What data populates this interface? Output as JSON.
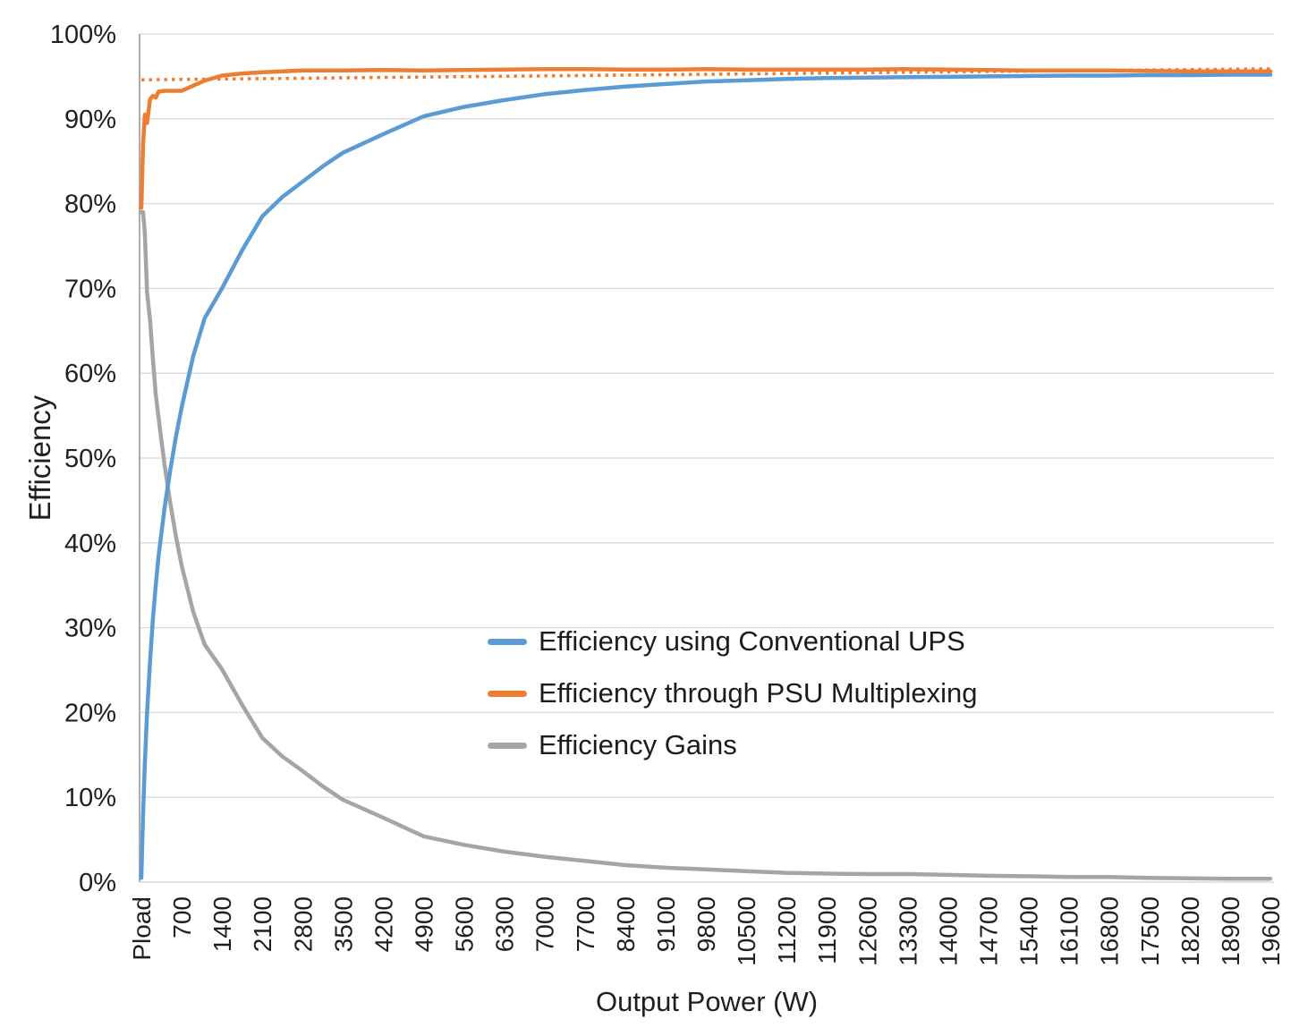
{
  "chart_data": {
    "type": "line",
    "title": "",
    "xlabel": "Output Power (W)",
    "ylabel": "Efficiency",
    "grid": "horizontal",
    "legend_position": "inside-center",
    "ylim": [
      0,
      100
    ],
    "xlim_watts": [
      0,
      19800
    ],
    "y_ticks": [
      {
        "label": "100%",
        "value": 100
      },
      {
        "label": "90%",
        "value": 90
      },
      {
        "label": "80%",
        "value": 80
      },
      {
        "label": "70%",
        "value": 70
      },
      {
        "label": "60%",
        "value": 60
      },
      {
        "label": "50%",
        "value": 50
      },
      {
        "label": "40%",
        "value": 40
      },
      {
        "label": "30%",
        "value": 30
      },
      {
        "label": "20%",
        "value": 20
      },
      {
        "label": "10%",
        "value": 10
      },
      {
        "label": "0%",
        "value": 0
      }
    ],
    "x_tick_labels": [
      "Pload",
      "700",
      "1400",
      "2100",
      "2800",
      "3500",
      "4200",
      "4900",
      "5600",
      "6300",
      "7000",
      "7700",
      "8400",
      "9100",
      "9800",
      "10500",
      "11200",
      "11900",
      "12600",
      "13300",
      "14000",
      "14700",
      "15400",
      "16100",
      "16800",
      "17500",
      "18200",
      "18900",
      "19600"
    ],
    "x_tick_step_watts": 700,
    "colors": {
      "gridline": "#D9D9D9",
      "axis_line": "#ADADAD",
      "text": "#1F1F1F"
    },
    "series": [
      {
        "name": "Efficiency using Conventional UPS",
        "color": "#5B9BD5",
        "style": "solid",
        "width": 4.5,
        "z": 2,
        "in_legend": true,
        "points": [
          [
            0,
            0.5
          ],
          [
            30,
            8
          ],
          [
            60,
            14
          ],
          [
            100,
            20
          ],
          [
            150,
            26
          ],
          [
            200,
            31
          ],
          [
            250,
            35
          ],
          [
            300,
            38.5
          ],
          [
            400,
            44
          ],
          [
            500,
            48.5
          ],
          [
            600,
            52.5
          ],
          [
            700,
            56
          ],
          [
            900,
            62
          ],
          [
            1100,
            66.5
          ],
          [
            1400,
            70
          ],
          [
            1750,
            74.5
          ],
          [
            2100,
            78.5
          ],
          [
            2450,
            80.8
          ],
          [
            2800,
            82.6
          ],
          [
            3150,
            84.4
          ],
          [
            3500,
            86
          ],
          [
            4200,
            88.2
          ],
          [
            4900,
            90.3
          ],
          [
            5600,
            91.4
          ],
          [
            6300,
            92.2
          ],
          [
            7000,
            92.9
          ],
          [
            7700,
            93.4
          ],
          [
            8400,
            93.8
          ],
          [
            9100,
            94.1
          ],
          [
            9800,
            94.4
          ],
          [
            10500,
            94.55
          ],
          [
            11200,
            94.7
          ],
          [
            11900,
            94.8
          ],
          [
            12600,
            94.85
          ],
          [
            13300,
            94.9
          ],
          [
            14000,
            94.95
          ],
          [
            14700,
            95.0
          ],
          [
            15400,
            95.05
          ],
          [
            16100,
            95.1
          ],
          [
            16800,
            95.1
          ],
          [
            17500,
            95.15
          ],
          [
            18200,
            95.15
          ],
          [
            18900,
            95.2
          ],
          [
            19600,
            95.2
          ]
        ]
      },
      {
        "name": "Efficiency through PSU Multiplexing",
        "color": "#ED7D31",
        "style": "solid",
        "width": 4.5,
        "z": 3,
        "in_legend": true,
        "points": [
          [
            0,
            79.5
          ],
          [
            30,
            87
          ],
          [
            60,
            90.5
          ],
          [
            100,
            89.5
          ],
          [
            150,
            92.3
          ],
          [
            200,
            92.7
          ],
          [
            250,
            92.5
          ],
          [
            300,
            93.2
          ],
          [
            400,
            93.3
          ],
          [
            500,
            93.3
          ],
          [
            600,
            93.3
          ],
          [
            700,
            93.3
          ],
          [
            900,
            93.9
          ],
          [
            1100,
            94.5
          ],
          [
            1400,
            95.1
          ],
          [
            1750,
            95.35
          ],
          [
            2100,
            95.5
          ],
          [
            2450,
            95.6
          ],
          [
            2800,
            95.7
          ],
          [
            3150,
            95.7
          ],
          [
            3500,
            95.7
          ],
          [
            4200,
            95.75
          ],
          [
            4900,
            95.7
          ],
          [
            5600,
            95.75
          ],
          [
            6300,
            95.8
          ],
          [
            7000,
            95.85
          ],
          [
            7700,
            95.85
          ],
          [
            8400,
            95.8
          ],
          [
            9100,
            95.8
          ],
          [
            9800,
            95.85
          ],
          [
            10500,
            95.8
          ],
          [
            11200,
            95.8
          ],
          [
            11900,
            95.8
          ],
          [
            12600,
            95.8
          ],
          [
            13300,
            95.85
          ],
          [
            14000,
            95.8
          ],
          [
            14700,
            95.75
          ],
          [
            15400,
            95.7
          ],
          [
            16100,
            95.7
          ],
          [
            16800,
            95.7
          ],
          [
            17500,
            95.65
          ],
          [
            18200,
            95.6
          ],
          [
            18900,
            95.6
          ],
          [
            19600,
            95.6
          ]
        ]
      },
      {
        "name": "Efficiency Gains",
        "color": "#A5A5A5",
        "style": "solid",
        "width": 4.5,
        "z": 1,
        "in_legend": true,
        "points": [
          [
            0,
            79
          ],
          [
            30,
            79
          ],
          [
            60,
            76.5
          ],
          [
            100,
            69.5
          ],
          [
            150,
            66.3
          ],
          [
            200,
            61.7
          ],
          [
            250,
            57.5
          ],
          [
            300,
            54.7
          ],
          [
            400,
            49.3
          ],
          [
            500,
            44.8
          ],
          [
            600,
            40.8
          ],
          [
            700,
            37.3
          ],
          [
            900,
            31.9
          ],
          [
            1100,
            28
          ],
          [
            1400,
            25.1
          ],
          [
            1750,
            20.9
          ],
          [
            2100,
            17
          ],
          [
            2450,
            14.8
          ],
          [
            2800,
            13.1
          ],
          [
            3150,
            11.3
          ],
          [
            3500,
            9.7
          ],
          [
            4200,
            7.6
          ],
          [
            4900,
            5.4
          ],
          [
            5600,
            4.4
          ],
          [
            6300,
            3.6
          ],
          [
            7000,
            3
          ],
          [
            7700,
            2.5
          ],
          [
            8400,
            2
          ],
          [
            9100,
            1.7
          ],
          [
            9800,
            1.5
          ],
          [
            10500,
            1.3
          ],
          [
            11200,
            1.1
          ],
          [
            11900,
            1
          ],
          [
            12600,
            0.95
          ],
          [
            13300,
            0.95
          ],
          [
            14000,
            0.85
          ],
          [
            14700,
            0.75
          ],
          [
            15400,
            0.7
          ],
          [
            16100,
            0.6
          ],
          [
            16800,
            0.6
          ],
          [
            17500,
            0.5
          ],
          [
            18200,
            0.45
          ],
          [
            18900,
            0.4
          ],
          [
            19600,
            0.4
          ]
        ]
      },
      {
        "name": "PSU Multiplexing trendline",
        "color": "#ED7D31",
        "style": "dotted",
        "width": 3.5,
        "z": 4,
        "in_legend": false,
        "points": [
          [
            0,
            94.6
          ],
          [
            19600,
            95.9
          ]
        ]
      }
    ]
  }
}
